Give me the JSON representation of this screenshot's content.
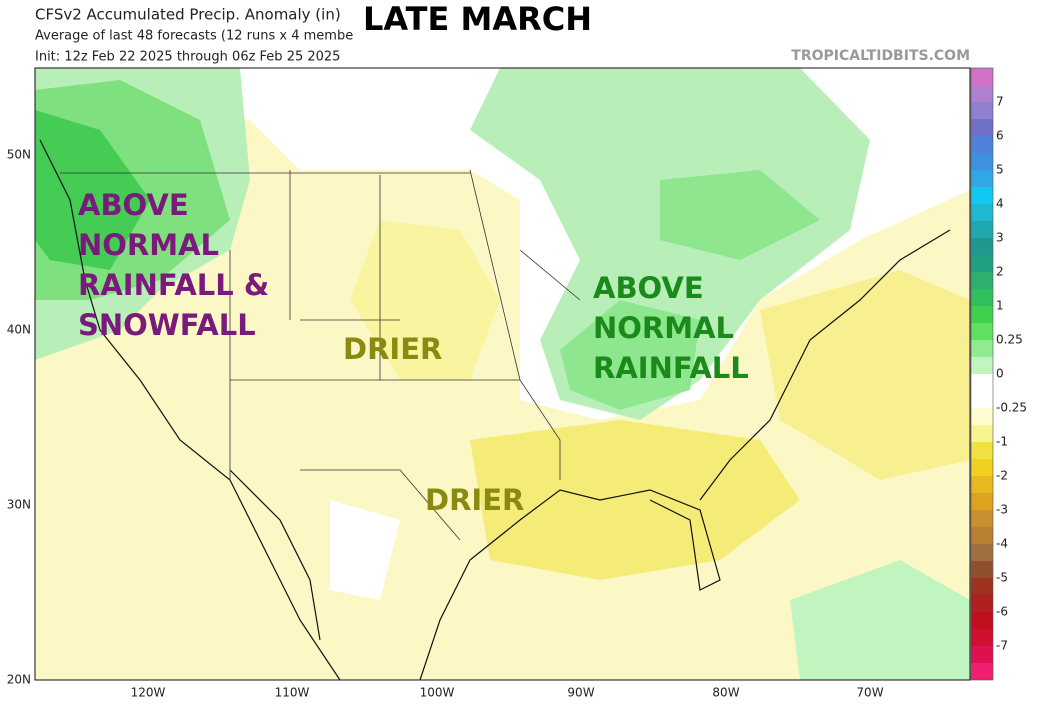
{
  "header": {
    "title": "CFSv2 Accumulated Precip. Anomaly (in)",
    "subtitle": "Average of last 48 forecasts (12 runs x 4 membe",
    "init": "Init: 12z Feb 22 2025 through 06z Feb 25 2025",
    "headline": "LATE MARCH",
    "source": "TROPICALTIDBITS.COM"
  },
  "map": {
    "lat_labels": [
      "50N",
      "40N",
      "30N",
      "20N"
    ],
    "lon_labels": [
      "120W",
      "110W",
      "100W",
      "90W",
      "80W",
      "70W"
    ],
    "annotations": [
      {
        "lines": [
          "ABOVE",
          "NORMAL",
          "RAINFALL &",
          "SNOWFALL"
        ],
        "color": "#7a1a7a"
      },
      {
        "lines": [
          "DRIER"
        ],
        "color": "#8a8a10"
      },
      {
        "lines": [
          "ABOVE",
          "NORMAL",
          "RAINFALL"
        ],
        "color": "#1a8a1a"
      },
      {
        "lines": [
          "DRIER"
        ],
        "color": "#8a8a10"
      }
    ]
  },
  "colorbar": {
    "labels": [
      "7",
      "6",
      "5",
      "4",
      "3",
      "2",
      "1",
      "0.25",
      "0",
      "-0.25",
      "-1",
      "-2",
      "-3",
      "-4",
      "-5",
      "-6",
      "-7"
    ],
    "colors": [
      "#d070c8",
      "#b080d0",
      "#9080d0",
      "#7070c8",
      "#5080d8",
      "#4090e0",
      "#30a8e8",
      "#10c8f0",
      "#20b8d0",
      "#20a8b0",
      "#209890",
      "#20a080",
      "#30b070",
      "#30c060",
      "#40d050",
      "#60e060",
      "#90ea90",
      "#c0f5c0",
      "#ffffff",
      "#ffffff",
      "#fcfcd0",
      "#f8f490",
      "#f0e040",
      "#f0d020",
      "#e8b820",
      "#e0a020",
      "#c89030",
      "#b88030",
      "#a07040",
      "#905030",
      "#a03020",
      "#b02020",
      "#c01020",
      "#d01030",
      "#e01050",
      "#f02070"
    ]
  }
}
